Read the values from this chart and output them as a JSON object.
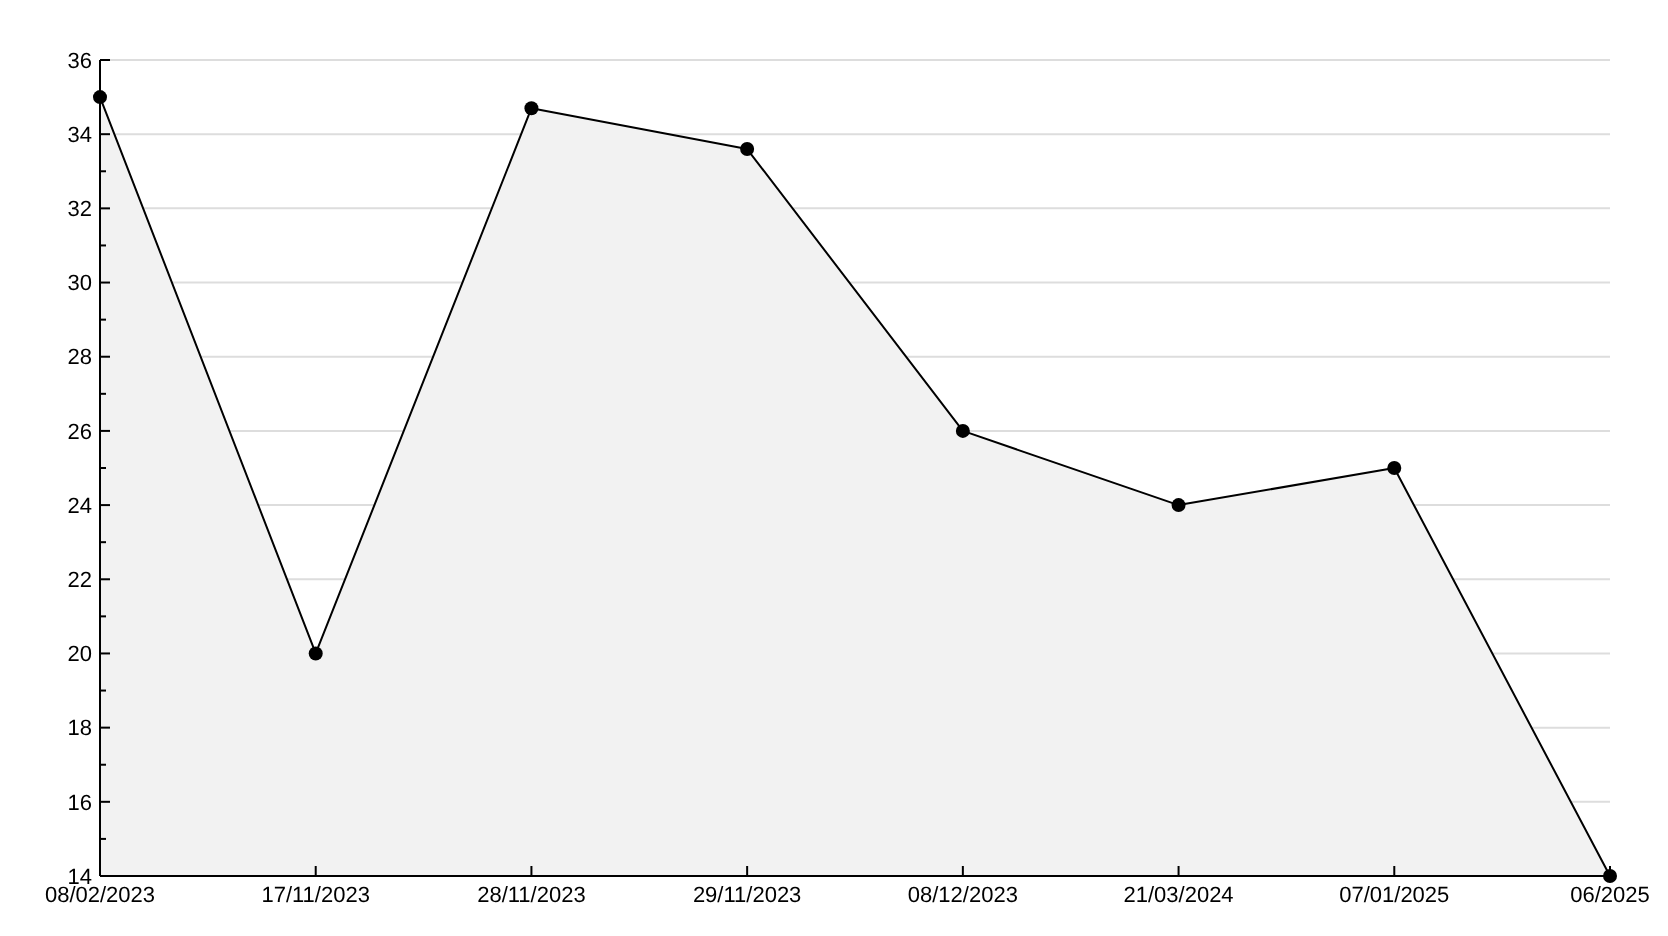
{
  "chart_data": {
    "type": "area",
    "categories": [
      "08/02/2023",
      "17/11/2023",
      "28/11/2023",
      "29/11/2023",
      "08/12/2023",
      "21/03/2024",
      "07/01/2025",
      "06/2025"
    ],
    "series": [
      {
        "color": "#000000",
        "values": [
          35,
          20,
          34.7,
          33.6,
          26,
          24,
          25,
          14
        ]
      }
    ],
    "ylim": [
      14,
      36
    ],
    "yticks": [
      14,
      {
        "value": 15,
        "label": null
      },
      16,
      {
        "value": 17,
        "label": null
      },
      18,
      {
        "value": 19,
        "label": null
      },
      20,
      {
        "value": 21,
        "label": null
      },
      22,
      {
        "value": 23,
        "label": null
      },
      24,
      {
        "value": 25,
        "label": null
      },
      26,
      {
        "value": 27,
        "label": null
      },
      28,
      {
        "value": 29,
        "label": null
      },
      30,
      {
        "value": 31,
        "label": null
      },
      32,
      {
        "value": 33,
        "label": null
      },
      34,
      {
        "value": 35,
        "label": null
      },
      36
    ],
    "grid": "y",
    "marker": "circle",
    "line_style": "solid"
  }
}
